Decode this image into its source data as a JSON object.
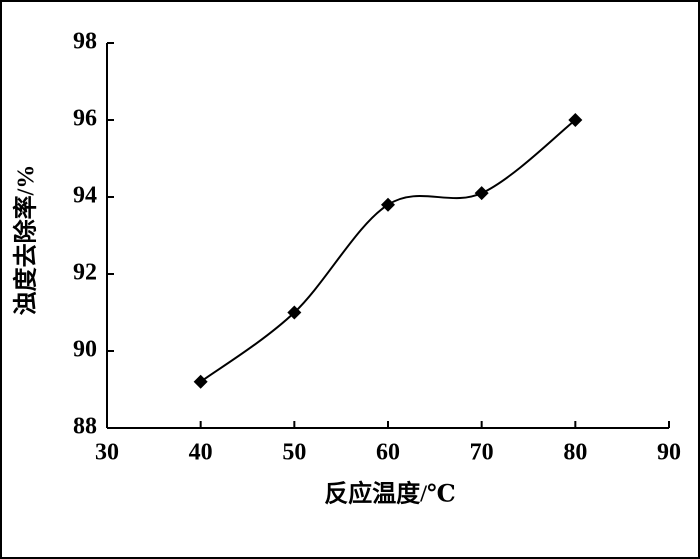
{
  "chart_data": {
    "type": "line",
    "xlabel": "反应温度/℃",
    "ylabel": "浊度去除率/%",
    "x": [
      40,
      50,
      60,
      70,
      80
    ],
    "values": [
      89.2,
      91.0,
      93.8,
      94.1,
      96.0
    ],
    "color": "#000000",
    "xlim": [
      30,
      90
    ],
    "xticks": [
      30,
      40,
      50,
      60,
      70,
      80,
      90
    ],
    "ylim": [
      88,
      98
    ],
    "yticks": [
      88,
      90,
      92,
      94,
      96,
      98
    ],
    "grid": false,
    "marker": "diamond",
    "smooth": true
  }
}
